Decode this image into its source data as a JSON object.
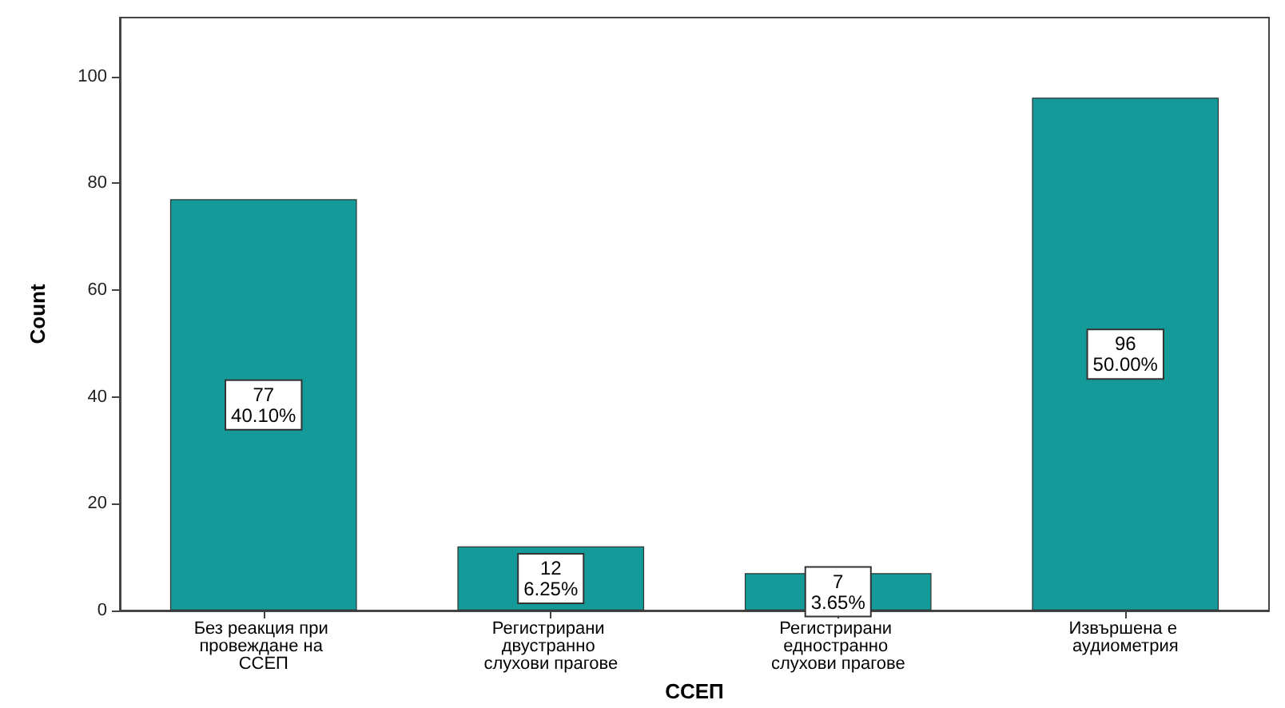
{
  "chart_data": {
    "type": "bar",
    "xlabel": "ССЕП",
    "ylabel": "Count",
    "categories": [
      "Без реакция при провеждане на ССЕП",
      "Регистрирани двустранно слухови прагове",
      "Регистрирани едностранно слухови прагове",
      "Извършена е аудиометрия"
    ],
    "values": [
      77,
      12,
      7,
      96
    ],
    "color": "#149a98",
    "value_labels": [
      "77\n40.10%",
      "12\n6.25%",
      "7\n3.65%",
      "96\n50.00%"
    ],
    "ylim": [
      0,
      111
    ],
    "yticks": [
      0,
      20,
      40,
      60,
      80,
      100
    ],
    "grid": false
  }
}
